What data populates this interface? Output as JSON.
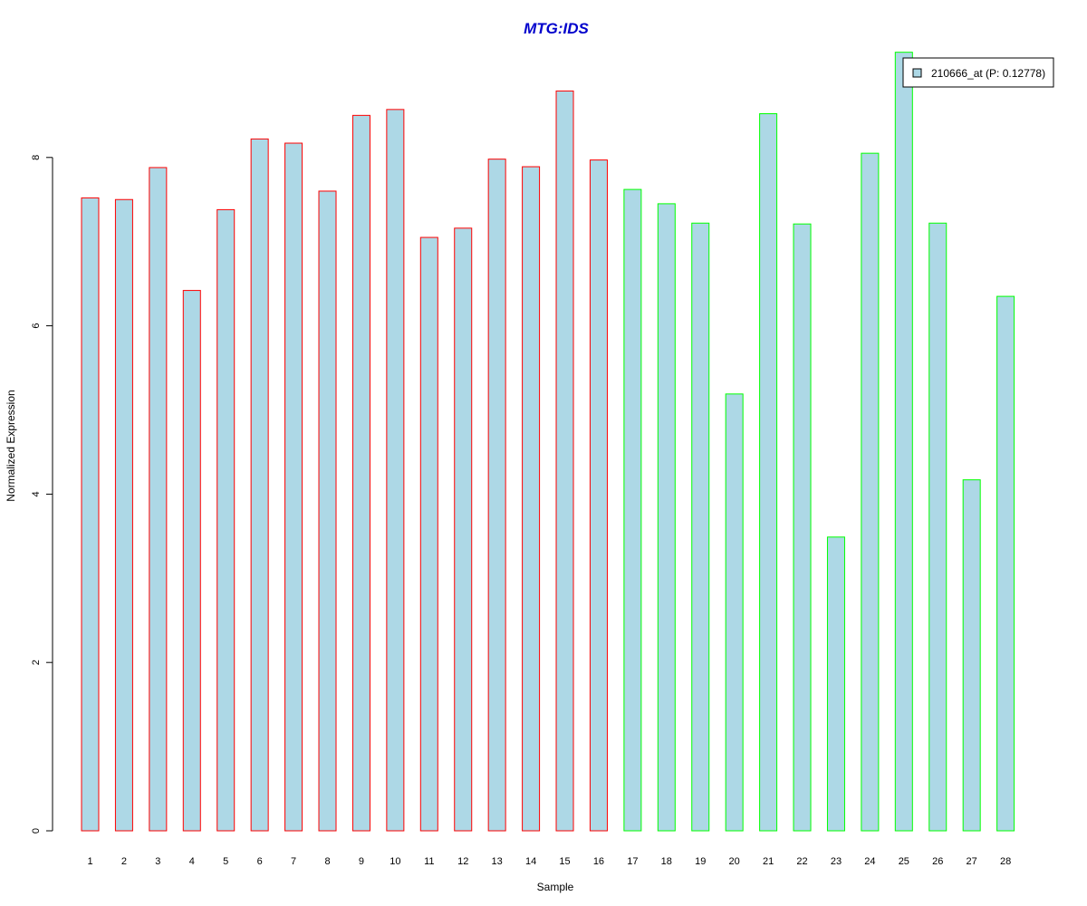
{
  "chart_data": {
    "type": "bar",
    "title": "MTG:IDS",
    "xlabel": "Sample",
    "ylabel": "Normalized Expression",
    "ylim": [
      0,
      9.3
    ],
    "yticks": [
      0,
      2,
      4,
      6,
      8
    ],
    "categories": [
      "1",
      "2",
      "3",
      "4",
      "5",
      "6",
      "7",
      "8",
      "9",
      "10",
      "11",
      "12",
      "13",
      "14",
      "15",
      "16",
      "17",
      "18",
      "19",
      "20",
      "21",
      "22",
      "23",
      "24",
      "25",
      "26",
      "27",
      "28"
    ],
    "values": [
      7.52,
      7.5,
      7.88,
      6.42,
      7.38,
      8.22,
      8.17,
      7.6,
      8.5,
      8.57,
      7.05,
      7.16,
      7.98,
      7.89,
      8.79,
      7.97,
      7.62,
      7.45,
      7.22,
      5.19,
      8.52,
      7.21,
      3.49,
      8.05,
      9.25,
      7.22,
      4.17,
      6.35
    ],
    "group_of_bar": [
      "A",
      "A",
      "A",
      "A",
      "A",
      "A",
      "A",
      "A",
      "A",
      "A",
      "A",
      "A",
      "A",
      "A",
      "A",
      "A",
      "B",
      "B",
      "B",
      "B",
      "B",
      "B",
      "B",
      "B",
      "B",
      "B",
      "B",
      "B"
    ],
    "legend": {
      "label": "210666_at (P: 0.12778)",
      "placement": "top-right"
    },
    "colors": {
      "fill": "#add8e6",
      "border_group_A": "#ff0000",
      "border_group_B": "#00ff00",
      "title": "#0000cc"
    }
  }
}
